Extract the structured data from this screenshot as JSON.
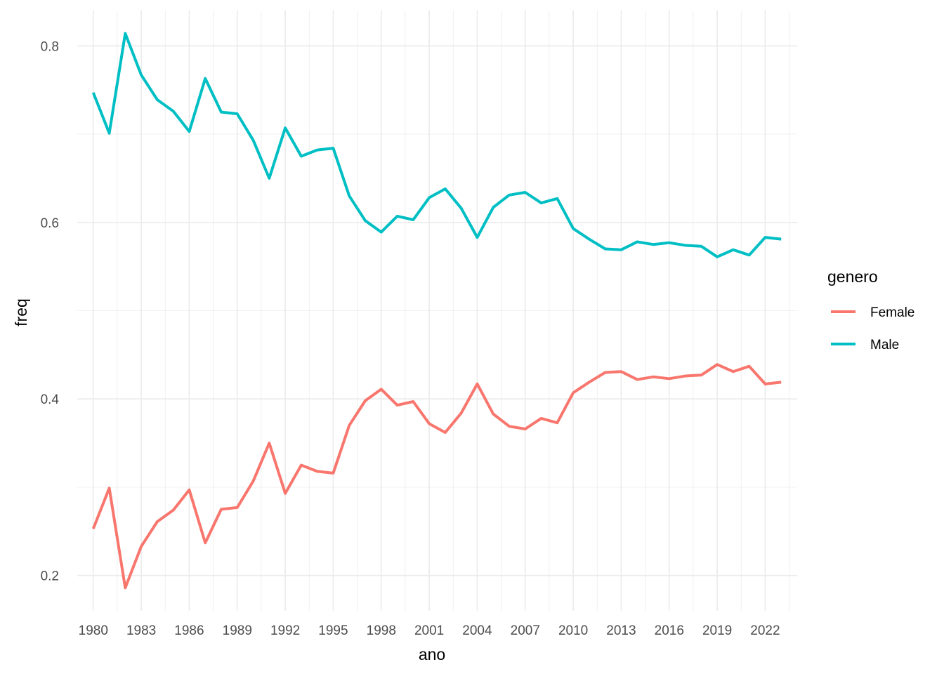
{
  "chart_data": {
    "type": "line",
    "xlabel": "ano",
    "ylabel": "freq",
    "xlim": [
      1979,
      2024
    ],
    "ylim": [
      0.16,
      0.84
    ],
    "x_ticks": [
      1980,
      1983,
      1986,
      1989,
      1992,
      1995,
      1998,
      2001,
      2004,
      2007,
      2010,
      2013,
      2016,
      2019,
      2022
    ],
    "y_ticks": [
      0.2,
      0.4,
      0.6,
      0.8
    ],
    "y_tick_labels": [
      "0.2",
      "0.4",
      "0.6",
      "0.8"
    ],
    "grid": true,
    "legend": {
      "title": "genero",
      "position": "right"
    },
    "x": [
      1980,
      1981,
      1982,
      1983,
      1984,
      1985,
      1986,
      1987,
      1988,
      1989,
      1990,
      1991,
      1992,
      1993,
      1994,
      1995,
      1996,
      1997,
      1998,
      1999,
      2000,
      2001,
      2002,
      2003,
      2004,
      2005,
      2006,
      2007,
      2008,
      2009,
      2010,
      2011,
      2012,
      2013,
      2014,
      2015,
      2016,
      2017,
      2018,
      2019,
      2020,
      2021,
      2022,
      2023
    ],
    "series": [
      {
        "name": "Female",
        "color": "#F8766D",
        "values": [
          0.253,
          0.299,
          0.186,
          0.233,
          0.261,
          0.274,
          0.297,
          0.237,
          0.275,
          0.277,
          0.307,
          0.35,
          0.293,
          0.325,
          0.318,
          0.316,
          0.37,
          0.398,
          0.411,
          0.393,
          0.397,
          0.372,
          0.362,
          0.384,
          0.417,
          0.383,
          0.369,
          0.366,
          0.378,
          0.373,
          0.407,
          0.419,
          0.43,
          0.431,
          0.422,
          0.425,
          0.423,
          0.426,
          0.427,
          0.439,
          0.431,
          0.437,
          0.417,
          0.419
        ]
      },
      {
        "name": "Male",
        "color": "#00BFC4",
        "values": [
          0.747,
          0.701,
          0.814,
          0.767,
          0.739,
          0.726,
          0.703,
          0.763,
          0.725,
          0.723,
          0.693,
          0.65,
          0.707,
          0.675,
          0.682,
          0.684,
          0.63,
          0.602,
          0.589,
          0.607,
          0.603,
          0.628,
          0.638,
          0.616,
          0.583,
          0.617,
          0.631,
          0.634,
          0.622,
          0.627,
          0.593,
          0.581,
          0.57,
          0.569,
          0.578,
          0.575,
          0.577,
          0.574,
          0.573,
          0.561,
          0.569,
          0.563,
          0.583,
          0.581
        ]
      }
    ]
  }
}
